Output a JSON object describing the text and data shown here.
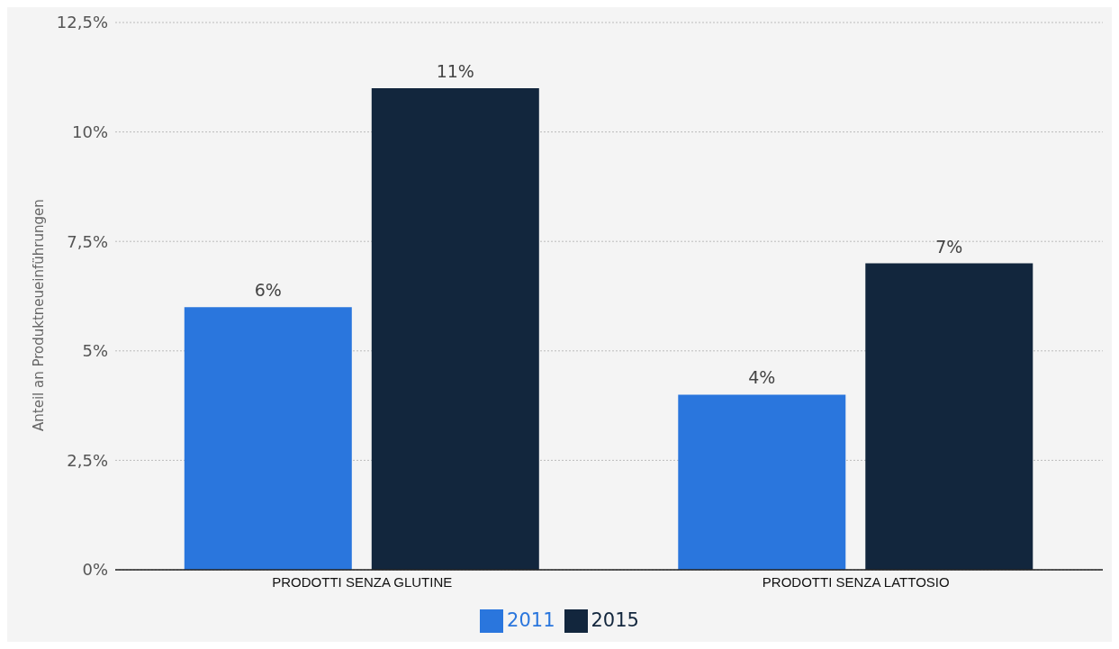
{
  "chart_data": {
    "type": "bar",
    "ylabel": "Anteil an Produktneueinführungen",
    "categories": [
      "PRODOTTI SENZA GLUTINE",
      "PRODOTTI SENZA LATTOSIO"
    ],
    "series": [
      {
        "name": "2011",
        "color": "#2a76dd",
        "values": [
          6,
          4
        ],
        "value_labels": [
          "6%",
          "4%"
        ]
      },
      {
        "name": "2015",
        "color": "#12263d",
        "values": [
          11,
          7
        ],
        "value_labels": [
          "11%",
          "7%"
        ]
      }
    ],
    "ylim": [
      0,
      12.5
    ],
    "yticks": [
      {
        "value": 0,
        "label": "0%"
      },
      {
        "value": 2.5,
        "label": "2,5%"
      },
      {
        "value": 5,
        "label": "5%"
      },
      {
        "value": 7.5,
        "label": "7,5%"
      },
      {
        "value": 10,
        "label": "10%"
      },
      {
        "value": 12.5,
        "label": "12,5%"
      }
    ],
    "grid": "y",
    "legend": "bottom"
  }
}
